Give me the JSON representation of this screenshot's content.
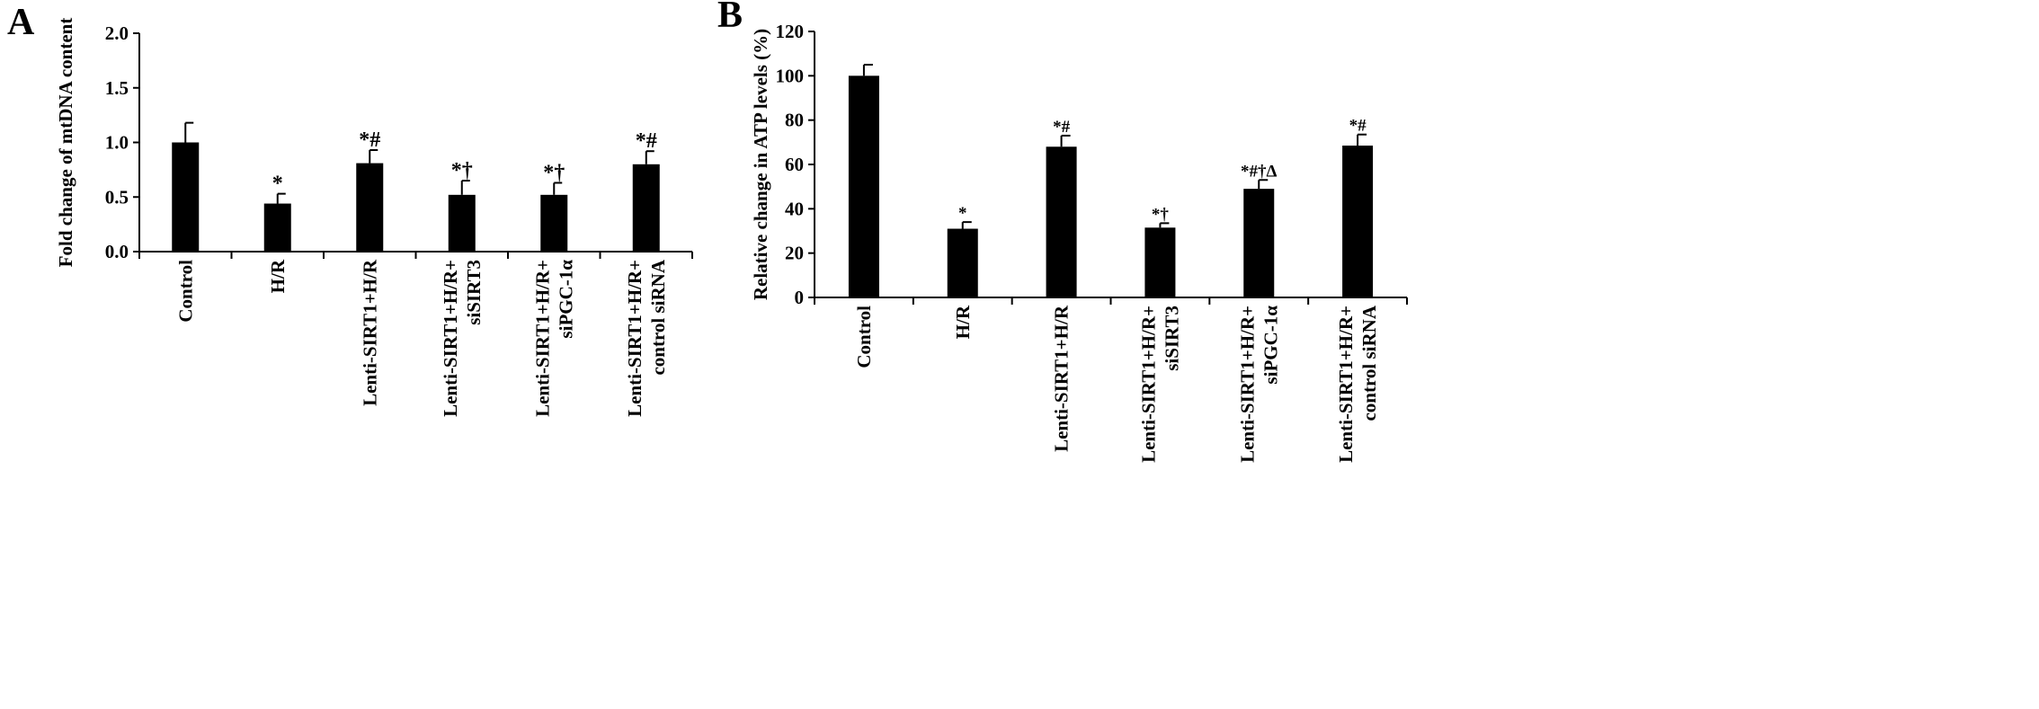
{
  "figure": {
    "panels": [
      "A",
      "B"
    ]
  },
  "chart_data": [
    {
      "panel": "A",
      "type": "bar",
      "ylabel": "Fold change of mtDNA content",
      "xlabel": "",
      "ylim": [
        0,
        2.0
      ],
      "yticks": [
        "0.0",
        "0.5",
        "1.0",
        "1.5",
        "2.0"
      ],
      "ytick_values": [
        0,
        0.5,
        1.0,
        1.5,
        2.0
      ],
      "grid": false,
      "categories": [
        [
          "Control"
        ],
        [
          "H/R"
        ],
        [
          "Lenti-SIRT1+H/R"
        ],
        [
          "Lenti-SIRT1+H/R+",
          "siSIRT3"
        ],
        [
          "Lenti-SIRT1+H/R+",
          "siPGC-1α"
        ],
        [
          "Lenti-SIRT1+H/R+",
          "control siRNA"
        ]
      ],
      "values": [
        1.0,
        0.44,
        0.81,
        0.52,
        0.52,
        0.8
      ],
      "errors": [
        0.18,
        0.09,
        0.12,
        0.13,
        0.11,
        0.12
      ],
      "annotations": [
        "",
        "*",
        "*#",
        "*†",
        "*†",
        "*#"
      ],
      "bar_color": "#000000"
    },
    {
      "panel": "B",
      "type": "bar",
      "ylabel": "Relative change in ATP levels (%)",
      "xlabel": "",
      "ylim": [
        0,
        120
      ],
      "yticks": [
        "0",
        "20",
        "40",
        "60",
        "80",
        "100",
        "120"
      ],
      "ytick_values": [
        0,
        20,
        40,
        60,
        80,
        100,
        120
      ],
      "grid": false,
      "categories": [
        [
          "Control"
        ],
        [
          "H/R"
        ],
        [
          "Lenti-SIRT1+H/R"
        ],
        [
          "Lenti-SIRT1+H/R+",
          "siSIRT3"
        ],
        [
          "Lenti-SIRT1+H/R+",
          "siPGC-1α"
        ],
        [
          "Lenti-SIRT1+H/R+",
          "control siRNA"
        ]
      ],
      "values": [
        100,
        31,
        68,
        31.5,
        49,
        68.5
      ],
      "errors": [
        5,
        3,
        5,
        2,
        4,
        5
      ],
      "annotations": [
        "",
        "*",
        "*#",
        "*†",
        "*#†Δ",
        "*#"
      ],
      "bar_color": "#000000"
    }
  ]
}
